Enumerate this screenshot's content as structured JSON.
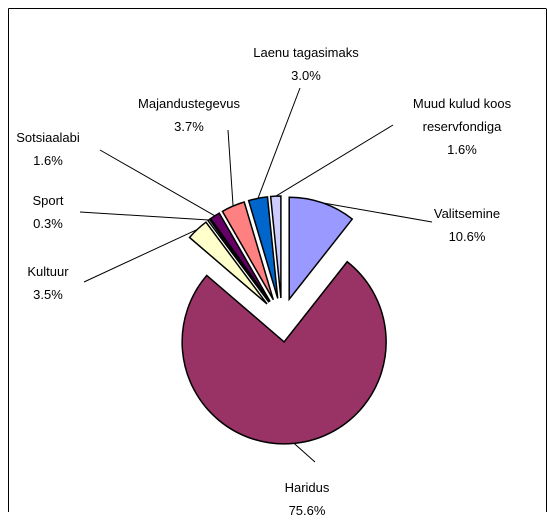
{
  "chart_data": {
    "type": "pie",
    "categories": [
      "Valitsemine",
      "Haridus",
      "Kultuur",
      "Sport",
      "Sotsiaalabi",
      "Majandustegevus",
      "Laenu tagasimaks",
      "Muud kulud koos reservfondiga"
    ],
    "values": [
      10.6,
      75.6,
      3.5,
      0.3,
      1.6,
      3.7,
      3.0,
      1.6
    ],
    "value_labels": [
      "10.6%",
      "75.6%",
      "3.5%",
      "0.3%",
      "1.6%",
      "3.7%",
      "3.0%",
      "1.6%"
    ],
    "colors": [
      "#9999ff",
      "#993366",
      "#ffffcc",
      "#ccffff",
      "#660066",
      "#ff8080",
      "#0066cc",
      "#ccccff"
    ],
    "exploded": true
  }
}
